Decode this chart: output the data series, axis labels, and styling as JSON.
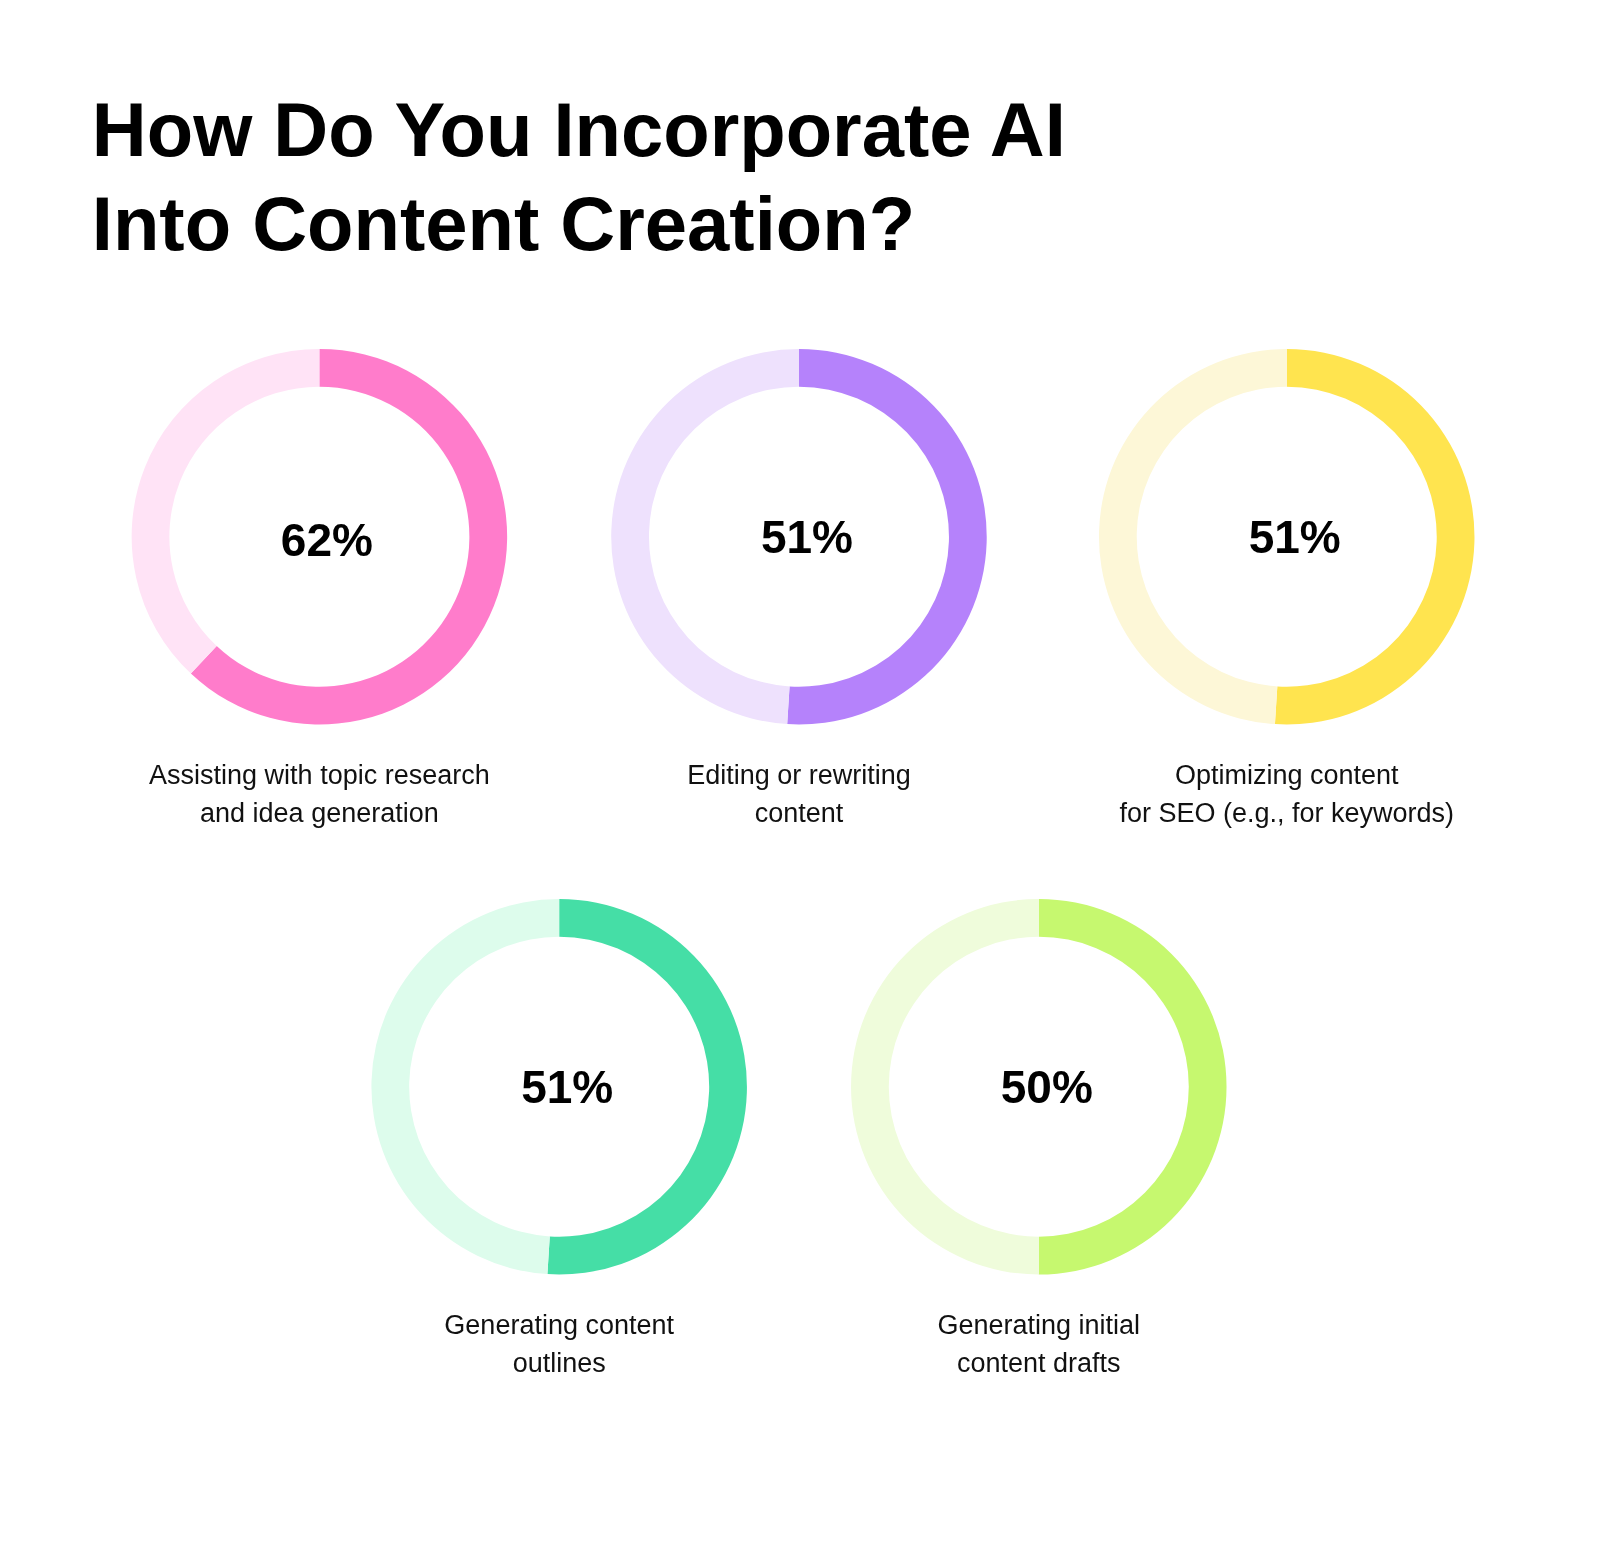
{
  "chart_data": [
    {
      "type": "other",
      "title": "How Do You Incorporate AI\nInto Content Creation?"
    },
    {
      "type": "donut",
      "categories": [
        null,
        null
      ],
      "values": [
        62,
        38
      ],
      "colors": [
        "#ff7ccb",
        "#ffe3f6"
      ],
      "value_labels": [
        "62%",
        null
      ],
      "xlabel": "Assisting with topic research\nand idea generation"
    },
    {
      "type": "donut",
      "categories": [
        null,
        null
      ],
      "values": [
        51,
        49
      ],
      "colors": [
        "#b582fb",
        "#eee1fd"
      ],
      "value_labels": [
        "51%",
        null
      ],
      "xlabel": "Editing or rewriting\ncontent"
    },
    {
      "type": "donut",
      "categories": [
        null,
        null
      ],
      "values": [
        51,
        49
      ],
      "colors": [
        "#ffe44f",
        "#fdf7d7"
      ],
      "value_labels": [
        "51%",
        null
      ],
      "xlabel": "Optimizing content\nfor SEO (e.g., for keywords)"
    },
    {
      "type": "donut",
      "categories": [
        null,
        null
      ],
      "values": [
        51,
        49
      ],
      "colors": [
        "#45dea6",
        "#ddfcec"
      ],
      "value_labels": [
        "51%",
        null
      ],
      "xlabel": "Generating content\noutlines"
    },
    {
      "type": "donut",
      "categories": [
        null,
        null
      ],
      "values": [
        50,
        50
      ],
      "colors": [
        "#c6f86f",
        "#effcdb"
      ],
      "value_labels": [
        "50%",
        null
      ],
      "xlabel": "Generating initial\ncontent drafts"
    }
  ]
}
